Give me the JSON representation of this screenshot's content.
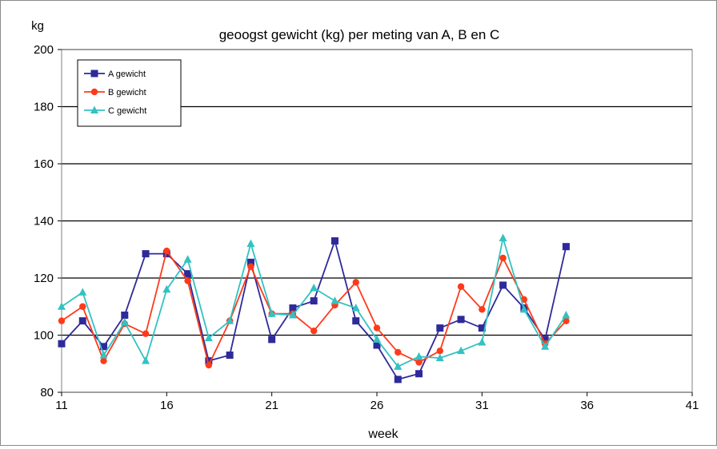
{
  "chart_data": {
    "type": "line",
    "title": "geoogst gewicht (kg) per meting van A, B en C",
    "ylabel": "kg",
    "xlabel": "week",
    "xlim": [
      11,
      41
    ],
    "ylim": [
      80,
      200
    ],
    "x_ticks": [
      11,
      16,
      21,
      26,
      31,
      36,
      41
    ],
    "y_ticks": [
      80,
      100,
      120,
      140,
      160,
      180,
      200
    ],
    "grid": "horizontal",
    "legend_position": "top-left",
    "x": [
      11,
      12,
      13,
      14,
      15,
      16,
      17,
      18,
      19,
      20,
      21,
      22,
      23,
      24,
      25,
      26,
      27,
      28,
      29,
      30,
      31,
      32,
      33,
      34,
      35
    ],
    "series": [
      {
        "name": "A gewicht",
        "color": "#2e2a9a",
        "marker": "square",
        "values": [
          97,
          105,
          96,
          107,
          128.5,
          128.5,
          121.5,
          91,
          93,
          125.5,
          98.5,
          109.5,
          112,
          133,
          105,
          96.5,
          84.5,
          86.5,
          102.5,
          105.5,
          102.5,
          117.5,
          109.5,
          98.5,
          131
        ]
      },
      {
        "name": "B gewicht",
        "color": "#ff3a1a",
        "marker": "circle",
        "values": [
          105,
          110,
          91,
          104,
          100.5,
          129.5,
          119,
          89.5,
          105,
          124,
          107.5,
          107.5,
          101.5,
          110.5,
          118.5,
          102.5,
          94,
          90.5,
          94.5,
          117,
          109,
          127,
          112.5,
          97,
          105
        ]
      },
      {
        "name": "C gewicht",
        "color": "#33c2c2",
        "marker": "triangle",
        "values": [
          110,
          115,
          93,
          104.5,
          91,
          116,
          126.5,
          99,
          105,
          132,
          107.5,
          107,
          116.5,
          112,
          109.5,
          98.5,
          89,
          92.5,
          92,
          94.5,
          97.5,
          134,
          109,
          96,
          107
        ]
      }
    ]
  }
}
